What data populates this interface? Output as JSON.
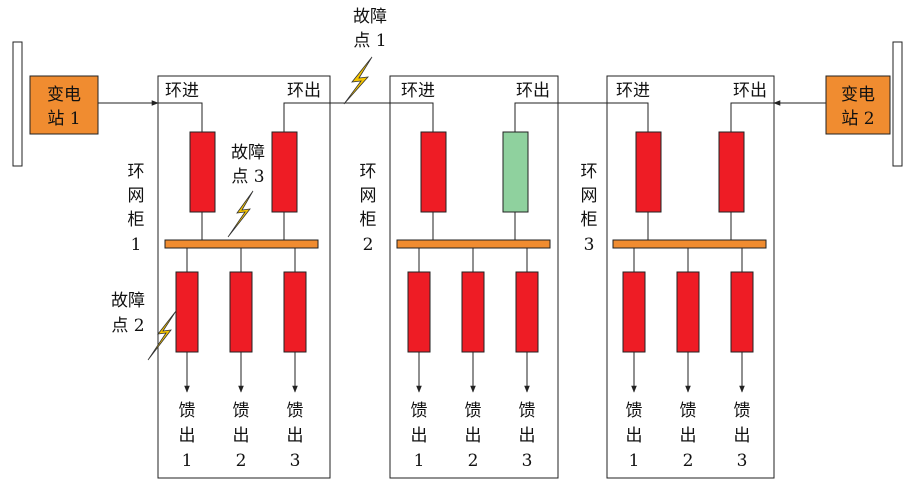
{
  "colors": {
    "breaker_closed": "#ee1c25",
    "breaker_open": "#8fd19e",
    "busbar": "#f08c30",
    "substation": "#f08c30",
    "line": "#222222",
    "fault": "#f5c400"
  },
  "substations": [
    {
      "line1": "变电",
      "line2": "站 1"
    },
    {
      "line1": "变电",
      "line2": "站 2"
    }
  ],
  "cabinets": [
    {
      "ring_in": "环进",
      "ring_out": "环出",
      "name_chars": [
        "环",
        "网",
        "柜",
        "1"
      ],
      "out_breaker_state": "closed",
      "feeders": [
        {
          "c1": "馈",
          "c2": "出",
          "num": "1"
        },
        {
          "c1": "馈",
          "c2": "出",
          "num": "2"
        },
        {
          "c1": "馈",
          "c2": "出",
          "num": "3"
        }
      ]
    },
    {
      "ring_in": "环进",
      "ring_out": "环出",
      "name_chars": [
        "环",
        "网",
        "柜",
        "2"
      ],
      "out_breaker_state": "open",
      "feeders": [
        {
          "c1": "馈",
          "c2": "出",
          "num": "1"
        },
        {
          "c1": "馈",
          "c2": "出",
          "num": "2"
        },
        {
          "c1": "馈",
          "c2": "出",
          "num": "3"
        }
      ]
    },
    {
      "ring_in": "环进",
      "ring_out": "环出",
      "name_chars": [
        "环",
        "网",
        "柜",
        "3"
      ],
      "out_breaker_state": "closed",
      "feeders": [
        {
          "c1": "馈",
          "c2": "出",
          "num": "1"
        },
        {
          "c1": "馈",
          "c2": "出",
          "num": "2"
        },
        {
          "c1": "馈",
          "c2": "出",
          "num": "3"
        }
      ]
    }
  ],
  "faults": [
    {
      "line1": "故障",
      "line2": "点 1"
    },
    {
      "line1": "故障",
      "line2": "点 2"
    },
    {
      "line1": "故障",
      "line2": "点 3"
    }
  ]
}
